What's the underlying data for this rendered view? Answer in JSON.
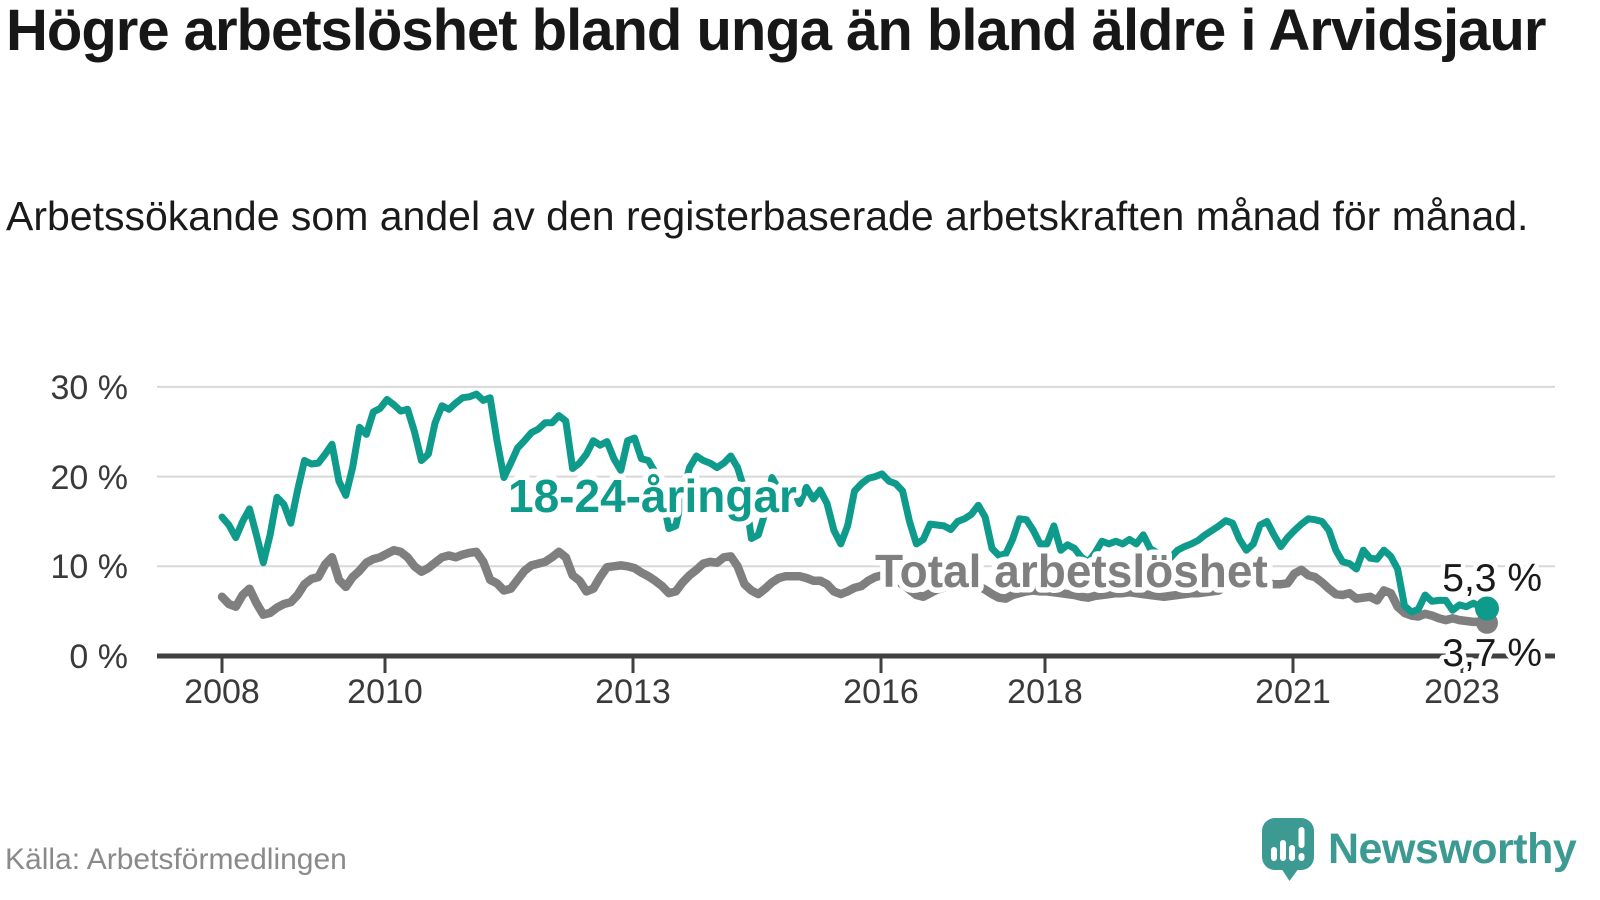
{
  "header": {
    "title": "Högre arbetslöshet bland unga än bland äldre i Arvidsjaur",
    "subtitle": "Arbetssökande som andel av den registerbaserade arbetskraften månad för månad."
  },
  "footer": {
    "source": "Källa: Arbetsförmedlingen",
    "brand": "Newsworthy"
  },
  "colors": {
    "youth_line": "#0e9b8c",
    "total_line": "#7f7f7f",
    "gridline": "#d8d8d8",
    "axis": "#404040",
    "logo_teal": "#3c9a92"
  },
  "chart_data": {
    "type": "line",
    "title": "Högre arbetslöshet bland unga än bland äldre i Arvidsjaur",
    "x_unit": "month",
    "x_range": [
      "2008-01",
      "2023-05"
    ],
    "ylim": [
      0,
      32
    ],
    "grid": "horizontal",
    "y_tick_labels": [
      "30 %",
      "20 %",
      "10 %",
      "0 %"
    ],
    "x_tick_labels": [
      "2008",
      "2010",
      "2013",
      "2016",
      "2018",
      "2021",
      "2023"
    ],
    "end_labels": {
      "youth": "5,3 %",
      "total": "3,7 %"
    },
    "series": [
      {
        "name": "18-24-åringar",
        "color": "#0e9b8c",
        "last_value": 5.3,
        "values": [
          15.5,
          14.6,
          13.2,
          15.0,
          16.4,
          13.5,
          10.4,
          13.5,
          17.7,
          16.9,
          14.8,
          18.5,
          21.8,
          21.4,
          21.5,
          22.5,
          23.6,
          19.5,
          17.9,
          21.0,
          25.5,
          24.7,
          27.2,
          27.6,
          28.6,
          28.0,
          27.3,
          27.5,
          25.0,
          21.8,
          22.5,
          26.0,
          27.9,
          27.5,
          28.2,
          28.8,
          28.9,
          29.2,
          28.5,
          28.8,
          24.0,
          19.9,
          21.5,
          23.2,
          24.0,
          24.9,
          25.3,
          26.0,
          26.0,
          26.8,
          26.2,
          20.9,
          21.5,
          22.5,
          24.0,
          23.5,
          23.9,
          22.0,
          20.7,
          24.0,
          24.3,
          22.0,
          21.8,
          20.5,
          18.0,
          14.2,
          14.5,
          18.0,
          21.0,
          22.3,
          21.8,
          21.5,
          21.0,
          21.5,
          22.3,
          21.0,
          18.5,
          13.1,
          13.5,
          16.0,
          19.9,
          18.5,
          17.0,
          18.8,
          17.0,
          18.8,
          17.5,
          18.5,
          17.0,
          14.0,
          12.5,
          14.5,
          18.4,
          19.2,
          19.8,
          20.0,
          20.3,
          19.5,
          19.2,
          18.4,
          15.0,
          12.5,
          13.0,
          14.7,
          14.6,
          14.5,
          14.1,
          15.0,
          15.3,
          15.8,
          16.8,
          15.5,
          12.0,
          11.2,
          11.4,
          13.0,
          15.3,
          15.2,
          14.0,
          12.5,
          12.5,
          14.5,
          11.8,
          12.4,
          12.0,
          11.0,
          10.5,
          11.5,
          12.8,
          12.5,
          12.8,
          12.5,
          13.0,
          12.5,
          13.5,
          12.0,
          11.5,
          10.5,
          11.0,
          11.8,
          12.2,
          12.5,
          12.9,
          13.5,
          14.0,
          14.5,
          15.1,
          14.8,
          13.0,
          11.8,
          12.5,
          14.6,
          15.0,
          13.5,
          12.2,
          13.2,
          14.0,
          14.7,
          15.3,
          15.2,
          15.0,
          14.0,
          11.8,
          10.5,
          10.3,
          9.7,
          11.8,
          10.9,
          10.8,
          11.8,
          11.1,
          9.7,
          5.6,
          4.9,
          5.2,
          6.8,
          6.1,
          6.2,
          6.2,
          5.1,
          5.7,
          5.5,
          5.9,
          5.5,
          5.3
        ]
      },
      {
        "name": "Total arbetslöshet",
        "color": "#7f7f7f",
        "last_value": 3.7,
        "values": [
          6.6,
          5.8,
          5.5,
          6.8,
          7.5,
          5.9,
          4.6,
          4.8,
          5.4,
          5.8,
          6.0,
          6.8,
          8.0,
          8.6,
          8.8,
          10.2,
          11.0,
          8.5,
          7.7,
          8.8,
          9.5,
          10.4,
          10.8,
          11.0,
          11.4,
          11.8,
          11.6,
          11.0,
          10.0,
          9.4,
          9.8,
          10.4,
          11.0,
          11.2,
          11.0,
          11.3,
          11.5,
          11.6,
          10.5,
          8.5,
          8.1,
          7.3,
          7.5,
          8.5,
          9.5,
          10.1,
          10.3,
          10.5,
          11.0,
          11.6,
          11.0,
          9.0,
          8.4,
          7.2,
          7.5,
          8.8,
          9.9,
          10.0,
          10.1,
          10.0,
          9.8,
          9.3,
          8.9,
          8.4,
          7.8,
          7.0,
          7.2,
          8.2,
          9.0,
          9.6,
          10.3,
          10.5,
          10.4,
          11.0,
          11.1,
          10.0,
          8.0,
          7.3,
          6.9,
          7.5,
          8.2,
          8.7,
          8.9,
          8.9,
          8.9,
          8.7,
          8.4,
          8.4,
          8.0,
          7.2,
          6.9,
          7.2,
          7.6,
          7.8,
          8.4,
          8.8,
          9.0,
          8.6,
          8.4,
          8.0,
          7.4,
          6.8,
          6.6,
          7.0,
          7.4,
          7.6,
          7.8,
          8.0,
          8.2,
          8.0,
          7.8,
          7.4,
          6.9,
          6.5,
          6.4,
          6.8,
          7.0,
          7.2,
          7.3,
          7.2,
          7.2,
          7.1,
          7.0,
          6.9,
          6.8,
          6.6,
          6.5,
          6.7,
          6.8,
          6.9,
          7.0,
          7.0,
          7.1,
          7.0,
          6.9,
          6.8,
          6.7,
          6.6,
          6.7,
          6.8,
          6.9,
          7.0,
          7.0,
          7.1,
          7.2,
          7.3,
          7.8,
          8.5,
          8.8,
          8.6,
          8.8,
          8.4,
          8.1,
          8.0,
          8.0,
          8.1,
          9.2,
          9.6,
          9.0,
          8.8,
          8.2,
          7.5,
          6.9,
          6.8,
          7.0,
          6.4,
          6.5,
          6.6,
          6.2,
          7.3,
          7.0,
          5.5,
          4.8,
          4.5,
          4.4,
          4.7,
          4.5,
          4.2,
          4.0,
          4.2,
          4.0,
          3.9,
          3.8,
          3.8,
          3.7
        ]
      }
    ]
  }
}
